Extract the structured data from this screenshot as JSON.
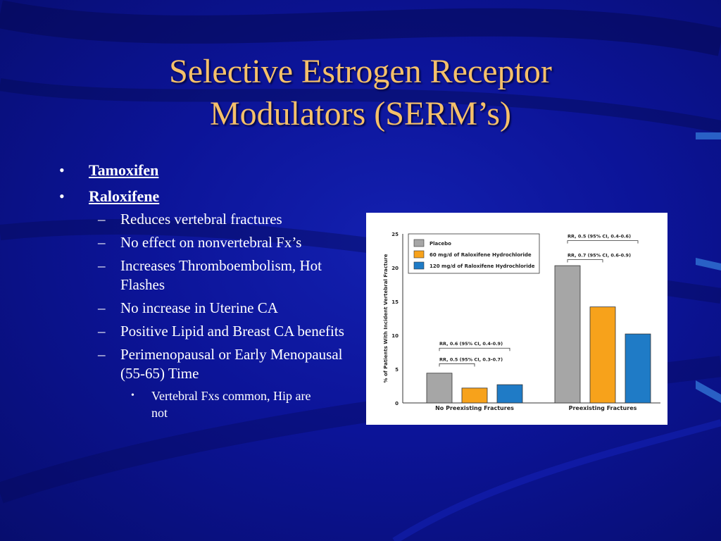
{
  "slide": {
    "title_line1": "Selective Estrogen Receptor",
    "title_line2": "Modulators (SERM’s)",
    "bullets": [
      {
        "text": "Tamoxifen"
      },
      {
        "text": "Raloxifene"
      }
    ],
    "sub_bullets": [
      {
        "text": "Reduces vertebral fractures"
      },
      {
        "text": "No effect on nonvertebral Fx’s"
      },
      {
        "text": "Increases Thromboembolism, Hot Flashes"
      },
      {
        "text": "No increase in Uterine CA"
      },
      {
        "text": "Positive Lipid and Breast CA benefits"
      },
      {
        "text": "Perimenopausal or Early Menopausal (55-65) Time"
      }
    ],
    "sub_sub_bullets": [
      {
        "text": "Vertebral Fxs common, Hip are not"
      }
    ],
    "bullet_glyph": "•",
    "dash_glyph": "–",
    "colors": {
      "background": "#0c1498",
      "title": "#f5c06a",
      "text": "#ffffff"
    }
  },
  "chart_data": {
    "type": "bar",
    "ylabel": "% of Patients With Incident Vertebral Fracture",
    "ylim": [
      0,
      25
    ],
    "yticks": [
      0,
      5,
      10,
      15,
      20,
      25
    ],
    "categories": [
      "No Preexisting Fractures",
      "Preexisting Fractures"
    ],
    "series": [
      {
        "name": "Placebo",
        "color": "#a6a6a6",
        "values": [
          4.4,
          20.3
        ]
      },
      {
        "name": "60 mg/d of Raloxifene Hydrochloride",
        "color": "#f7a21b",
        "values": [
          2.2,
          14.2
        ]
      },
      {
        "name": "120 mg/d of Raloxifene Hydrochloride",
        "color": "#1f7bc6",
        "values": [
          2.7,
          10.2
        ]
      }
    ],
    "annotations": [
      {
        "text": "RR, 0.6 (95% CI, 0.4-0.9)",
        "group": 0,
        "from": 0,
        "to": 2,
        "y": 8.1
      },
      {
        "text": "RR, 0.5 (95% CI, 0.3-0.7)",
        "group": 0,
        "from": 0,
        "to": 1,
        "y": 5.8
      },
      {
        "text": "RR, 0.5 (95% CI, 0.4-0.6)",
        "group": 1,
        "from": 0,
        "to": 2,
        "y": 24.0
      },
      {
        "text": "RR, 0.7 (95% CI, 0.6-0.9)",
        "group": 1,
        "from": 0,
        "to": 1,
        "y": 21.2
      }
    ]
  }
}
